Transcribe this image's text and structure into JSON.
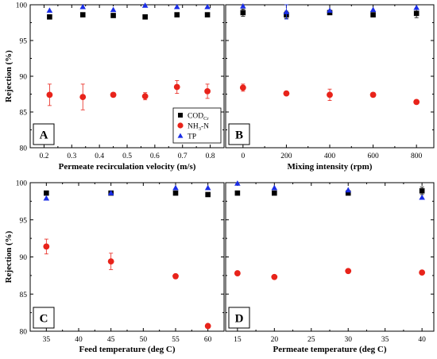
{
  "chart_data": [
    {
      "type": "scatter",
      "panel_label": "A",
      "xlabel": "Permeate recirculation velocity (m/s)",
      "ylabel": "Rejection (%)",
      "xlim": [
        0.15,
        0.85
      ],
      "ylim": [
        80,
        100
      ],
      "xticks": [
        "0.2",
        "0.3",
        "0.4",
        "0.5",
        "0.6",
        "0.7",
        "0.8"
      ],
      "yticks": [
        "80",
        "85",
        "90",
        "95",
        "100"
      ],
      "legend": {
        "placement": "bottom-right",
        "entries": [
          {
            "series": 0,
            "label": "COD",
            "sub": "Cr"
          },
          {
            "series": 1,
            "label": "NH",
            "sub": "3",
            "after": "-N"
          },
          {
            "series": 2,
            "label": "TP"
          }
        ]
      },
      "x": [
        0.22,
        0.34,
        0.45,
        0.565,
        0.68,
        0.79
      ],
      "series": [
        {
          "marker": "square",
          "color": "#000000",
          "values": [
            98.3,
            98.6,
            98.5,
            98.3,
            98.6,
            98.6
          ],
          "errors": [
            0,
            0,
            0,
            0,
            0,
            0
          ]
        },
        {
          "marker": "circle",
          "color": "#e8231a",
          "values": [
            87.4,
            87.1,
            87.4,
            87.2,
            88.5,
            87.9
          ],
          "errors": [
            1.5,
            1.8,
            0.3,
            0.5,
            0.9,
            1.0
          ]
        },
        {
          "marker": "triangle",
          "color": "#1a2de6",
          "values": [
            99.2,
            99.7,
            99.3,
            99.9,
            99.7,
            99.7
          ],
          "errors": [
            0,
            0,
            0,
            0,
            0,
            0
          ]
        }
      ]
    },
    {
      "type": "scatter",
      "panel_label": "B",
      "xlabel": "Mixing intensity (rpm)",
      "ylabel": "",
      "xlim": [
        -80,
        880
      ],
      "ylim": [
        80,
        100
      ],
      "xticks": [
        "0",
        "200",
        "400",
        "600",
        "800"
      ],
      "x": [
        0,
        200,
        400,
        600,
        800
      ],
      "series": [
        {
          "marker": "square",
          "color": "#000000",
          "values": [
            98.9,
            98.6,
            98.9,
            98.6,
            98.8
          ],
          "errors": [
            0.5,
            0.5,
            0.3,
            0.3,
            0.6
          ]
        },
        {
          "marker": "circle",
          "color": "#e8231a",
          "values": [
            88.4,
            87.6,
            87.4,
            87.4,
            86.4
          ],
          "errors": [
            0.5,
            0.2,
            0.8,
            0.3,
            0.2
          ]
        },
        {
          "marker": "triangle",
          "color": "#1a2de6",
          "values": [
            99.8,
            99.0,
            99.2,
            99.3,
            99.6
          ],
          "errors": [
            0,
            1.0,
            0,
            0,
            0
          ]
        }
      ]
    },
    {
      "type": "scatter",
      "panel_label": "C",
      "xlabel": "Feed temperature (deg C)",
      "ylabel": "Rejection (%)",
      "xlim": [
        32.5,
        62.5
      ],
      "ylim": [
        80,
        100
      ],
      "xticks": [
        "35",
        "40",
        "45",
        "50",
        "55",
        "60"
      ],
      "yticks": [
        "80",
        "85",
        "90",
        "95",
        "100"
      ],
      "x": [
        35,
        45,
        55,
        60
      ],
      "series": [
        {
          "marker": "square",
          "color": "#000000",
          "values": [
            98.6,
            98.6,
            98.6,
            98.4
          ],
          "errors": [
            0,
            0,
            0,
            0
          ]
        },
        {
          "marker": "circle",
          "color": "#e8231a",
          "values": [
            91.4,
            89.4,
            87.4,
            80.7
          ],
          "errors": [
            1.0,
            1.1,
            0.2,
            0
          ]
        },
        {
          "marker": "triangle",
          "color": "#1a2de6",
          "values": [
            97.9,
            98.6,
            99.3,
            99.3
          ],
          "errors": [
            0,
            0,
            0,
            0
          ]
        }
      ]
    },
    {
      "type": "scatter",
      "panel_label": "D",
      "xlabel": "Permeate temperature (deg C)",
      "ylabel": "",
      "xlim": [
        13.4,
        41.6
      ],
      "ylim": [
        80,
        100
      ],
      "xticks": [
        "15",
        "20",
        "25",
        "30",
        "35",
        "40"
      ],
      "x": [
        15,
        20,
        30,
        40
      ],
      "series": [
        {
          "marker": "square",
          "color": "#000000",
          "values": [
            98.6,
            98.6,
            98.6,
            98.9
          ],
          "errors": [
            0,
            0,
            0,
            0.5
          ]
        },
        {
          "marker": "circle",
          "color": "#e8231a",
          "values": [
            87.8,
            87.3,
            88.1,
            87.9
          ],
          "errors": [
            0,
            0,
            0,
            0
          ]
        },
        {
          "marker": "triangle",
          "color": "#1a2de6",
          "values": [
            99.9,
            99.3,
            99.0,
            98.0
          ],
          "errors": [
            0,
            0,
            0,
            0
          ]
        }
      ]
    }
  ]
}
